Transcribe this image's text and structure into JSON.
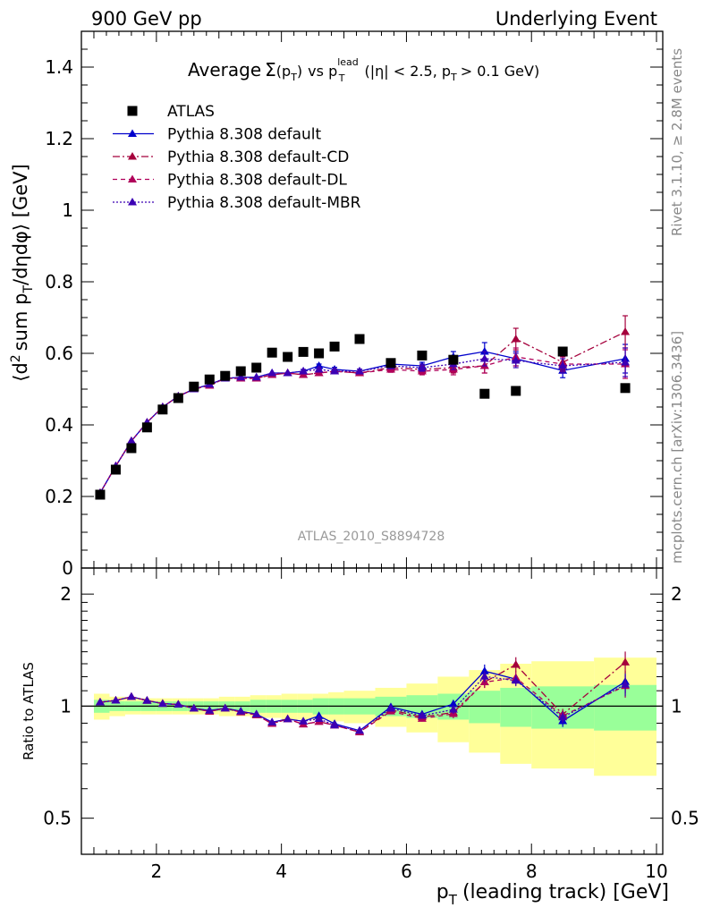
{
  "header": {
    "left": "900 GeV pp",
    "right": "Underlying Event"
  },
  "side": {
    "upper": "Rivet 3.1.10, ≥ 2.8M events",
    "lower": "mcplots.cern.ch [arXiv:1306.3436]"
  },
  "title": {
    "average": "Average",
    "sigma": "Σ",
    "arg": "(p",
    "arg_sub": "T",
    "arg_close": ")",
    "vs": "vs p",
    "vs_sub": "T",
    "vs_sup": "lead",
    "cuts1": "(|η| < 2.5, p",
    "cuts_sub": "T",
    "cuts2": "> 0.1 GeV)"
  },
  "analysis_id": "ATLAS_2010_S8894728",
  "ylabel_upper": {
    "p1": "⟨d",
    "sup": "2",
    "p2": "sum p",
    "sub": "T",
    "p3": "/dηdφ⟩ [GeV]"
  },
  "ylabel_ratio": "Ratio to ATLAS",
  "xlabel": {
    "p1": "p",
    "sub": "T",
    "p2": "(leading track) [GeV]"
  },
  "colors": {
    "data": "#000000",
    "default": "#0000cc",
    "cd": "#a5003c",
    "dl": "#b0005a",
    "mbr": "#3c00b4",
    "band_outer": "#ffff99",
    "band_inner": "#99ff99"
  },
  "chart_data": {
    "type": "scatter",
    "x_range": [
      0.8,
      10.1
    ],
    "upper": {
      "y_range": [
        0,
        1.5
      ],
      "x_ticks": [
        2,
        4,
        6,
        8,
        10
      ],
      "y_ticks": [
        0,
        0.2,
        0.4,
        0.6,
        0.8,
        1,
        1.2,
        1.4
      ],
      "y_tick_labels": [
        "0",
        "0.2",
        "0.4",
        "0.6",
        "0.8",
        "1",
        "1.2",
        "1.4"
      ]
    },
    "ratio": {
      "y_range": [
        0.4,
        2.35
      ],
      "scale": "log",
      "y_ticks": [
        0.5,
        1,
        2
      ],
      "y_tick_labels": [
        "0.5",
        "1",
        "2"
      ],
      "x_tick_labels": [
        "2",
        "4",
        "6",
        "8",
        "10"
      ]
    },
    "x": [
      1.1,
      1.35,
      1.6,
      1.85,
      2.1,
      2.35,
      2.6,
      2.85,
      3.1,
      3.35,
      3.6,
      3.85,
      4.1,
      4.35,
      4.6,
      4.85,
      5.25,
      5.75,
      6.25,
      6.75,
      7.25,
      7.75,
      8.5,
      9.5
    ],
    "x_bins": [
      [
        1.0,
        1.25
      ],
      [
        1.25,
        1.5
      ],
      [
        1.5,
        1.75
      ],
      [
        1.75,
        2.0
      ],
      [
        2.0,
        2.25
      ],
      [
        2.25,
        2.5
      ],
      [
        2.5,
        2.75
      ],
      [
        2.75,
        3.0
      ],
      [
        3.0,
        3.25
      ],
      [
        3.25,
        3.5
      ],
      [
        3.5,
        3.75
      ],
      [
        3.75,
        4.0
      ],
      [
        4.0,
        4.25
      ],
      [
        4.25,
        4.5
      ],
      [
        4.5,
        4.75
      ],
      [
        4.75,
        5.0
      ],
      [
        5.0,
        5.5
      ],
      [
        5.5,
        6.0
      ],
      [
        6.0,
        6.5
      ],
      [
        6.5,
        7.0
      ],
      [
        7.0,
        7.5
      ],
      [
        7.5,
        8.0
      ],
      [
        8.0,
        9.0
      ],
      [
        9.0,
        10.0
      ]
    ],
    "data": {
      "name": "ATLAS",
      "y": [
        0.205,
        0.275,
        0.335,
        0.393,
        0.443,
        0.475,
        0.507,
        0.527,
        0.537,
        0.55,
        0.56,
        0.602,
        0.59,
        0.604,
        0.6,
        0.619,
        0.64,
        0.573,
        0.594,
        0.582,
        0.487,
        0.495,
        0.605,
        0.503
      ],
      "band_outer": [
        0.08,
        0.06,
        0.05,
        0.05,
        0.05,
        0.05,
        0.05,
        0.05,
        0.06,
        0.06,
        0.07,
        0.07,
        0.08,
        0.08,
        0.08,
        0.09,
        0.1,
        0.12,
        0.15,
        0.2,
        0.25,
        0.3,
        0.32,
        0.35
      ],
      "band_inner": [
        0.04,
        0.03,
        0.03,
        0.03,
        0.03,
        0.03,
        0.03,
        0.03,
        0.03,
        0.03,
        0.04,
        0.04,
        0.04,
        0.04,
        0.05,
        0.05,
        0.05,
        0.06,
        0.07,
        0.08,
        0.1,
        0.12,
        0.13,
        0.14
      ]
    },
    "series": [
      {
        "name": "Pythia 8.308 default",
        "key": "default",
        "dash": "",
        "y": [
          0.21,
          0.285,
          0.355,
          0.407,
          0.45,
          0.48,
          0.5,
          0.513,
          0.53,
          0.533,
          0.533,
          0.545,
          0.545,
          0.55,
          0.565,
          0.555,
          0.55,
          0.57,
          0.565,
          0.59,
          0.605,
          0.585,
          0.552,
          0.585
        ],
        "err": [
          0.002,
          0.002,
          0.002,
          0.002,
          0.002,
          0.002,
          0.003,
          0.003,
          0.003,
          0.003,
          0.003,
          0.004,
          0.004,
          0.005,
          0.005,
          0.006,
          0.006,
          0.008,
          0.01,
          0.015,
          0.025,
          0.02,
          0.02,
          0.04
        ]
      },
      {
        "name": "Pythia 8.308 default-CD",
        "key": "cd",
        "dash": "8,3,2,3",
        "y": [
          0.21,
          0.285,
          0.355,
          0.407,
          0.45,
          0.48,
          0.5,
          0.51,
          0.53,
          0.53,
          0.53,
          0.54,
          0.545,
          0.54,
          0.545,
          0.55,
          0.545,
          0.56,
          0.555,
          0.56,
          0.565,
          0.64,
          0.575,
          0.66
        ],
        "err": [
          0.002,
          0.002,
          0.002,
          0.002,
          0.002,
          0.002,
          0.003,
          0.003,
          0.003,
          0.003,
          0.003,
          0.004,
          0.004,
          0.005,
          0.005,
          0.006,
          0.006,
          0.008,
          0.01,
          0.015,
          0.02,
          0.03,
          0.02,
          0.045
        ]
      },
      {
        "name": "Pythia 8.308 default-DL",
        "key": "dl",
        "dash": "5,4",
        "y": [
          0.21,
          0.285,
          0.355,
          0.407,
          0.45,
          0.48,
          0.5,
          0.51,
          0.53,
          0.53,
          0.53,
          0.54,
          0.545,
          0.54,
          0.545,
          0.55,
          0.545,
          0.555,
          0.55,
          0.555,
          0.565,
          0.59,
          0.57,
          0.57
        ],
        "err": [
          0.002,
          0.002,
          0.002,
          0.002,
          0.002,
          0.002,
          0.003,
          0.003,
          0.003,
          0.003,
          0.003,
          0.004,
          0.004,
          0.005,
          0.005,
          0.006,
          0.006,
          0.008,
          0.01,
          0.015,
          0.02,
          0.025,
          0.02,
          0.04
        ]
      },
      {
        "name": "Pythia 8.308 default-MBR",
        "key": "mbr",
        "dash": "2,2",
        "y": [
          0.21,
          0.285,
          0.355,
          0.407,
          0.45,
          0.48,
          0.5,
          0.513,
          0.53,
          0.533,
          0.533,
          0.545,
          0.545,
          0.55,
          0.555,
          0.55,
          0.55,
          0.565,
          0.56,
          0.57,
          0.585,
          0.58,
          0.565,
          0.575
        ],
        "err": [
          0.002,
          0.002,
          0.002,
          0.002,
          0.002,
          0.002,
          0.003,
          0.003,
          0.003,
          0.003,
          0.003,
          0.004,
          0.004,
          0.005,
          0.005,
          0.006,
          0.006,
          0.008,
          0.01,
          0.015,
          0.02,
          0.02,
          0.02,
          0.04
        ]
      }
    ]
  }
}
